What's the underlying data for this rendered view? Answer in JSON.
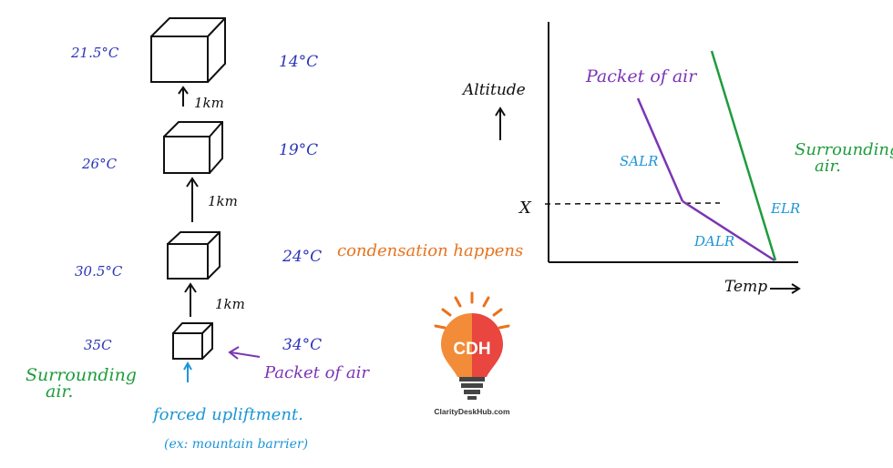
{
  "left_diagram": {
    "levels": [
      {
        "surrounding_temp": "21.5°C",
        "packet_temp": "14°C"
      },
      {
        "surrounding_temp": "26°C",
        "packet_temp": "19°C"
      },
      {
        "surrounding_temp": "30.5°C",
        "packet_temp": "24°C"
      },
      {
        "surrounding_temp": "35C",
        "packet_temp": "34°C"
      }
    ],
    "step_labels": [
      "1km",
      "1km",
      "1km"
    ],
    "condensation_note": "condensation happens",
    "surrounding_air_label": "Surrounding air.",
    "packet_of_air_label": "Packet of air",
    "uplift_label": "forced upliftment.",
    "uplift_example": "(ex: mountain barrier)"
  },
  "right_graph": {
    "y_axis_label": "Altitude",
    "x_axis_label": "Temp",
    "x_marker_label": "X",
    "packet_label": "Packet of air",
    "surrounding_label": "Surrounding air.",
    "lines": [
      {
        "name": "SALR",
        "color": "#7b35b5"
      },
      {
        "name": "DALR",
        "color": "#7b35b5"
      },
      {
        "name": "ELR",
        "color": "#1e9c3c"
      }
    ]
  },
  "logo": {
    "initials": "CDH",
    "site": "ClarityDeskHub.com"
  },
  "colors": {
    "blue_ink": "#2b34b8",
    "orange_ink": "#e8731e",
    "green_ink": "#1e9c3c",
    "purple_ink": "#7b35b5",
    "cyan_ink": "#1c95d8",
    "black_ink": "#111111"
  }
}
